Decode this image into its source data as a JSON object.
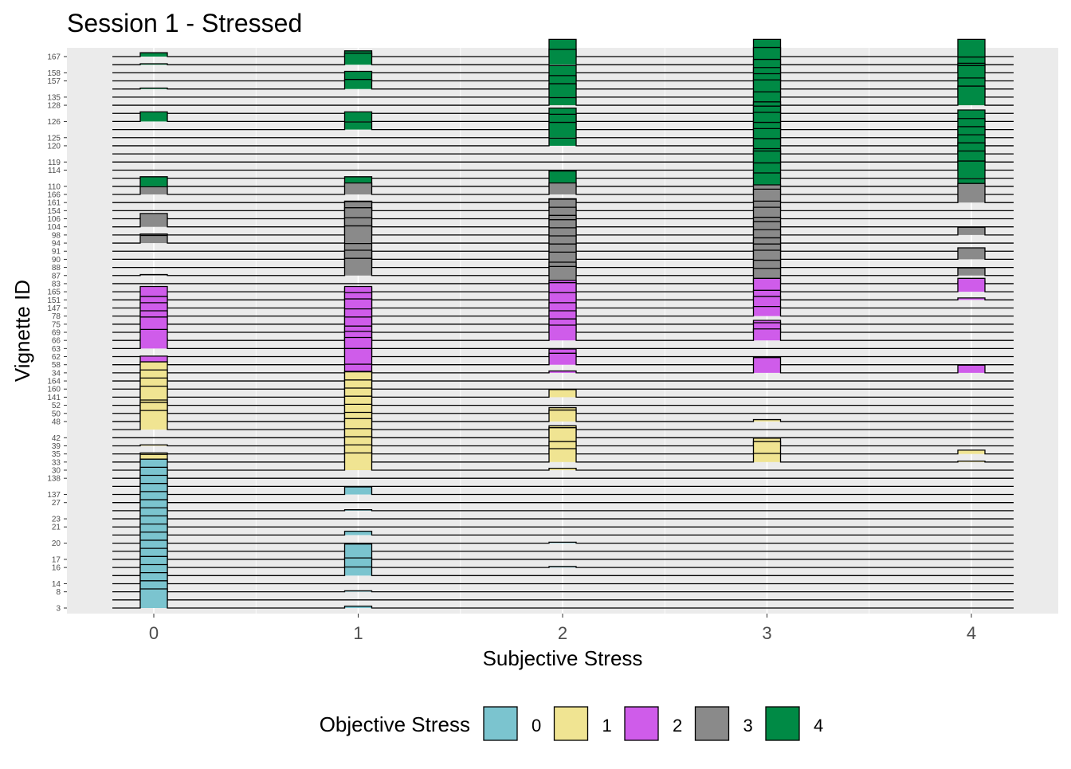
{
  "chart_data": {
    "type": "bar",
    "title": "Session 1 - Stressed",
    "xlabel": "Subjective Stress",
    "ylabel": "Vignette ID",
    "xlim": [
      -0.42,
      4.42
    ],
    "x_ticks": [
      "0",
      "1",
      "2",
      "3",
      "4"
    ],
    "grid": true,
    "legend": {
      "title": "Objective Stress",
      "position": "bottom",
      "entries": [
        {
          "label": "0",
          "color": "#7BC4CF"
        },
        {
          "label": "1",
          "color": "#F0E492"
        },
        {
          "label": "2",
          "color": "#CF5CEA"
        },
        {
          "label": "3",
          "color": "#8A8A8A"
        },
        {
          "label": "4",
          "color": "#008A45"
        }
      ]
    },
    "groups": [
      {
        "objective": 0,
        "labeled_ids": [
          "3",
          "8",
          "14",
          "16",
          "17",
          "20",
          "21",
          "23",
          "27",
          "137",
          "138"
        ],
        "rows": 17,
        "pattern": [
          [
            1.0,
            0.1,
            0.0,
            0.0,
            0.0
          ],
          [
            1.0,
            0.0,
            0.0,
            0.0,
            0.0
          ],
          [
            1.0,
            0.05,
            0.0,
            0.0,
            0.0
          ],
          [
            1.0,
            0.0,
            0.0,
            0.0,
            0.0
          ],
          [
            1.0,
            0.45,
            0.0,
            0.0,
            0.0
          ],
          [
            1.0,
            0.5,
            0.05,
            0.0,
            0.0
          ],
          [
            1.0,
            0.8,
            0.0,
            0.0,
            0.0
          ],
          [
            1.0,
            0.0,
            0.0,
            0.0,
            0.0
          ],
          [
            1.0,
            0.0,
            0.05,
            0.0,
            0.0
          ],
          [
            1.0,
            0.2,
            0.0,
            0.0,
            0.0
          ],
          [
            1.0,
            0.0,
            0.0,
            0.0,
            0.0
          ],
          [
            1.0,
            0.0,
            0.0,
            0.0,
            0.0
          ],
          [
            1.0,
            0.05,
            0.0,
            0.0,
            0.0
          ],
          [
            1.0,
            0.0,
            0.0,
            0.0,
            0.0
          ],
          [
            1.0,
            0.4,
            0.0,
            0.0,
            0.0
          ],
          [
            1.0,
            0.0,
            0.0,
            0.0,
            0.0
          ],
          [
            1.0,
            0.0,
            0.0,
            0.0,
            0.0
          ]
        ]
      },
      {
        "objective": 1,
        "labeled_ids": [
          "30",
          "33",
          "35",
          "39",
          "42",
          "48",
          "50",
          "52",
          "141",
          "160",
          "164"
        ],
        "rows": 12,
        "pattern": [
          [
            0.0,
            0.9,
            0.1,
            0.0,
            0.0
          ],
          [
            0.4,
            0.9,
            0.7,
            0.45,
            0.05
          ],
          [
            0.05,
            0.9,
            0.65,
            0.65,
            0.2
          ],
          [
            0.05,
            0.9,
            0.95,
            0.4,
            0.0
          ],
          [
            0.0,
            1.0,
            0.5,
            0.0,
            0.0
          ],
          [
            1.0,
            0.9,
            0.2,
            0.0,
            0.0
          ],
          [
            1.0,
            0.9,
            0.6,
            0.1,
            0.0
          ],
          [
            0.7,
            0.9,
            0.3,
            0.0,
            0.0
          ],
          [
            1.0,
            0.9,
            0.0,
            0.0,
            0.0
          ],
          [
            1.0,
            0.9,
            0.4,
            0.0,
            0.0
          ],
          [
            1.0,
            0.9,
            0.0,
            0.0,
            0.0
          ],
          [
            1.0,
            0.5,
            0.0,
            0.0,
            0.0
          ]
        ]
      },
      {
        "objective": 2,
        "labeled_ids": [
          "34",
          "58",
          "62",
          "63",
          "66",
          "69",
          "75",
          "78",
          "147",
          "151",
          "165"
        ],
        "rows": 11,
        "pattern": [
          [
            0.0,
            0.45,
            0.1,
            0.8,
            0.4
          ],
          [
            0.45,
            0.85,
            0.6,
            0.0,
            0.0
          ],
          [
            0.0,
            1.0,
            0.4,
            0.0,
            0.0
          ],
          [
            1.0,
            0.9,
            0.0,
            0.0,
            0.0
          ],
          [
            0.1,
            0.75,
            0.8,
            0.6,
            0.0
          ],
          [
            0.8,
            0.8,
            0.7,
            0.5,
            0.0
          ],
          [
            0.7,
            0.8,
            0.7,
            0.2,
            0.0
          ],
          [
            0.7,
            0.9,
            0.7,
            0.5,
            0.0
          ],
          [
            0.6,
            0.8,
            0.8,
            0.6,
            0.0
          ],
          [
            0.7,
            0.7,
            0.9,
            0.5,
            0.1
          ],
          [
            0.0,
            0.2,
            0.6,
            0.7,
            0.7
          ]
        ]
      },
      {
        "objective": 3,
        "labeled_ids": [
          "83",
          "87",
          "88",
          "90",
          "91",
          "94",
          "98",
          "104",
          "106",
          "154",
          "161",
          "166"
        ],
        "rows": 12,
        "pattern": [
          [
            0.0,
            0.0,
            0.9,
            0.8,
            0.1
          ],
          [
            0.05,
            0.9,
            0.7,
            0.8,
            0.4
          ],
          [
            0.0,
            0.9,
            0.8,
            0.9,
            0.0
          ],
          [
            0.0,
            0.4,
            0.8,
            0.8,
            0.6
          ],
          [
            0.0,
            0.4,
            0.8,
            0.7,
            0.0
          ],
          [
            0.4,
            0.9,
            0.8,
            0.7,
            0.0
          ],
          [
            0.05,
            0.9,
            0.8,
            0.7,
            0.4
          ],
          [
            0.7,
            1.0,
            0.6,
            0.5,
            0.0
          ],
          [
            0.05,
            0.9,
            0.6,
            0.6,
            0.0
          ],
          [
            0.0,
            0.5,
            0.6,
            0.5,
            0.0
          ],
          [
            0.0,
            0.0,
            0.2,
            0.7,
            1.0
          ],
          [
            0.4,
            0.6,
            0.6,
            0.5,
            0.0
          ]
        ]
      },
      {
        "objective": 4,
        "labeled_ids": [
          "110",
          "114",
          "119",
          "120",
          "125",
          "126",
          "128",
          "135",
          "157",
          "158",
          "167"
        ],
        "rows": 17,
        "pattern": [
          [
            0.5,
            0.5,
            0.8,
            0.7,
            0.4
          ],
          [
            0.0,
            0.0,
            0.0,
            0.8,
            0.9
          ],
          [
            0.0,
            0.0,
            0.0,
            1.0,
            1.0
          ],
          [
            0.0,
            0.0,
            0.0,
            0.7,
            1.0
          ],
          [
            0.0,
            0.0,
            0.0,
            0.8,
            1.0
          ],
          [
            0.0,
            0.0,
            0.4,
            0.9,
            1.0
          ],
          [
            0.0,
            0.0,
            0.8,
            0.8,
            1.0
          ],
          [
            0.0,
            0.4,
            0.8,
            0.9,
            0.0
          ],
          [
            0.5,
            0.5,
            0.7,
            0.8,
            0.6
          ],
          [
            0.0,
            0.0,
            0.0,
            0.6,
            0.0
          ],
          [
            0.0,
            0.0,
            0.4,
            0.7,
            1.0
          ],
          [
            0.0,
            0.0,
            0.7,
            0.9,
            1.0
          ],
          [
            0.05,
            0.5,
            0.7,
            0.8,
            0.0
          ],
          [
            0.0,
            0.5,
            0.8,
            0.7,
            0.8
          ],
          [
            0.0,
            0.0,
            0.0,
            0.7,
            0.5
          ],
          [
            0.05,
            0.6,
            0.8,
            0.9,
            0.4
          ],
          [
            0.2,
            0.3,
            0.9,
            0.9,
            0.9
          ]
        ]
      }
    ]
  }
}
